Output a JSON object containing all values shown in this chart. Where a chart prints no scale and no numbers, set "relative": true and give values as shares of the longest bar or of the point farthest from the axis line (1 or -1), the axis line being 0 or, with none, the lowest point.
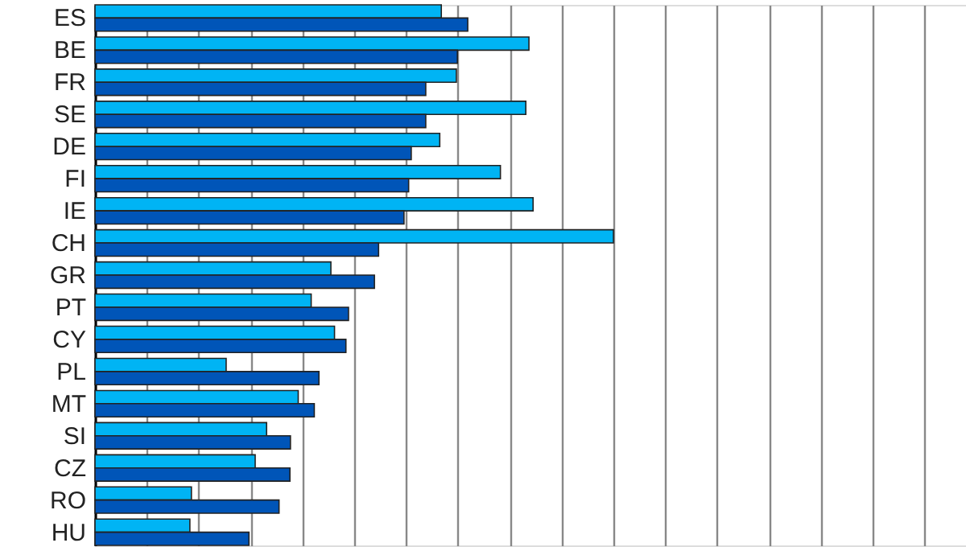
{
  "chart_data": {
    "type": "bar",
    "orientation": "horizontal",
    "relative": true,
    "grid": "x",
    "legend": false,
    "categories": [
      "ES",
      "BE",
      "FR",
      "SE",
      "DE",
      "FI",
      "IE",
      "CH",
      "GR",
      "PT",
      "CY",
      "PL",
      "MT",
      "SI",
      "CZ",
      "RO",
      "HU"
    ],
    "series": [
      {
        "color": "#00b4f4",
        "values": [
          0.668,
          0.837,
          0.697,
          0.831,
          0.665,
          0.782,
          0.845,
          1,
          0.455,
          0.417,
          0.462,
          0.253,
          0.392,
          0.331,
          0.309,
          0.186,
          0.183
        ]
      },
      {
        "color": "#0055b8",
        "values": [
          0.719,
          0.699,
          0.638,
          0.638,
          0.61,
          0.605,
          0.596,
          0.547,
          0.539,
          0.489,
          0.484,
          0.432,
          0.423,
          0.377,
          0.376,
          0.355,
          0.297
        ]
      }
    ]
  }
}
